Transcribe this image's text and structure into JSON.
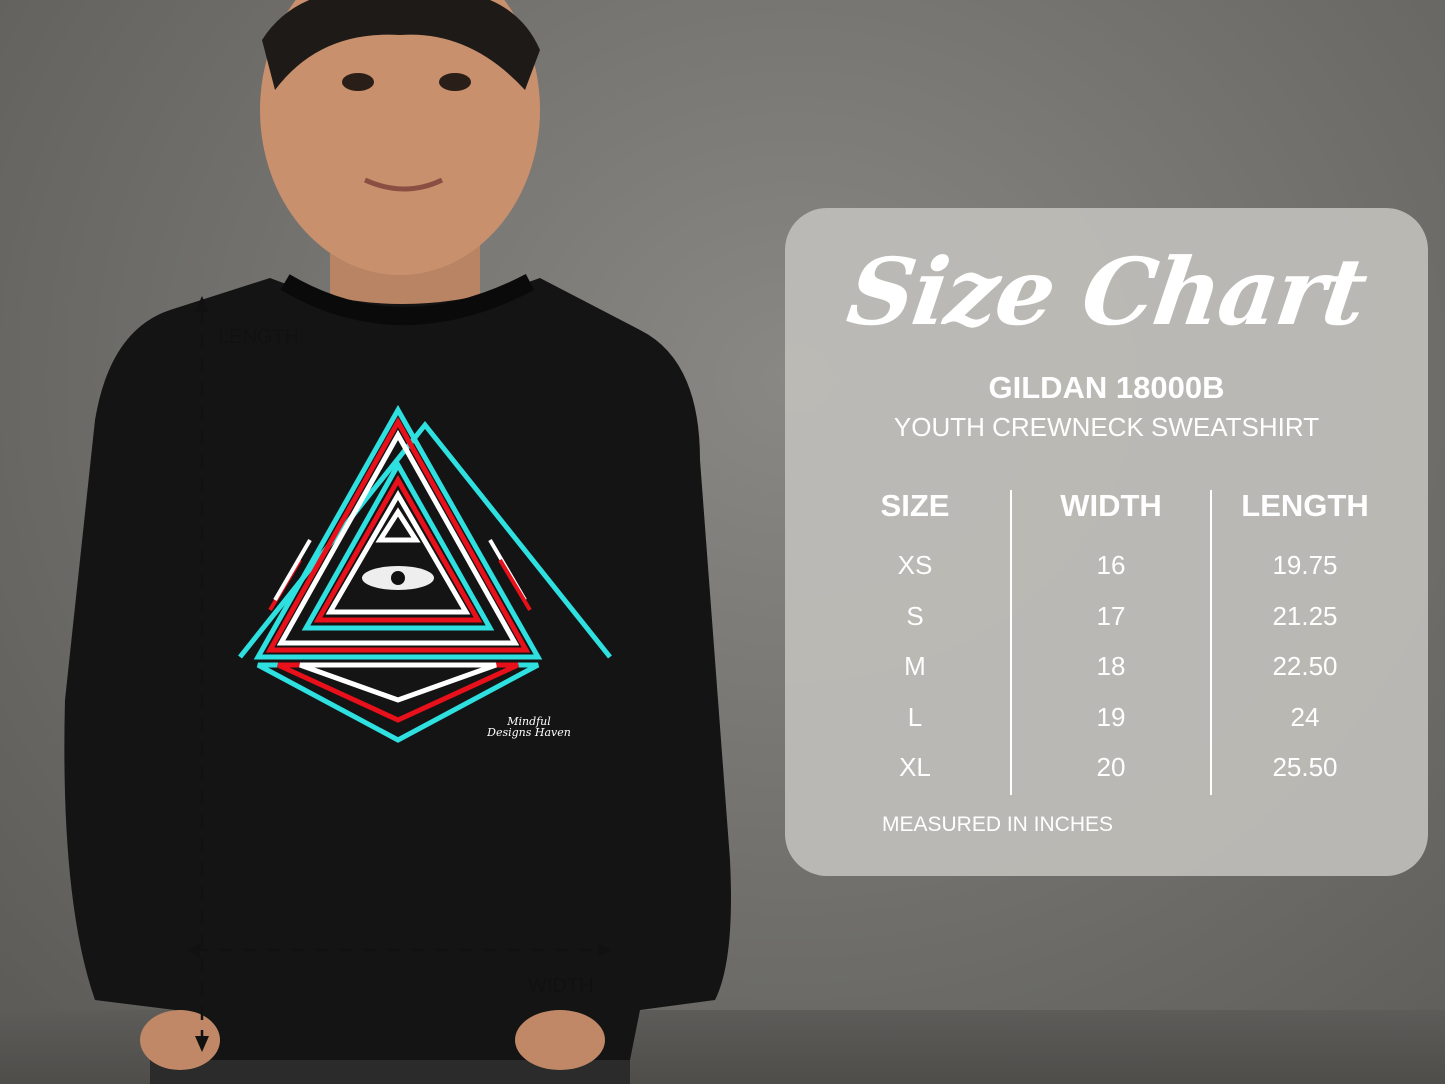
{
  "chart": {
    "title": "Size Chart",
    "brand": "GILDAN 18000B",
    "model": "YOUTH CREWNECK SWEATSHIRT",
    "columns": [
      "SIZE",
      "WIDTH",
      "LENGTH"
    ],
    "sizes": [
      "XS",
      "S",
      "M",
      "L",
      "XL"
    ],
    "widths": [
      "16",
      "17",
      "18",
      "19",
      "20"
    ],
    "lengths": [
      "19.75",
      "21.25",
      "22.50",
      "24",
      "25.50"
    ],
    "note": "MEASURED IN INCHES"
  },
  "measure": {
    "length_label": "LENGTH",
    "width_label": "WIDTH"
  },
  "print_logo": "Mindful Designs Haven",
  "colors": {
    "panel": "#bebdb9",
    "sweatshirt": "#141414",
    "accent_red": "#e8101a",
    "accent_cyan": "#2fe0e0"
  }
}
